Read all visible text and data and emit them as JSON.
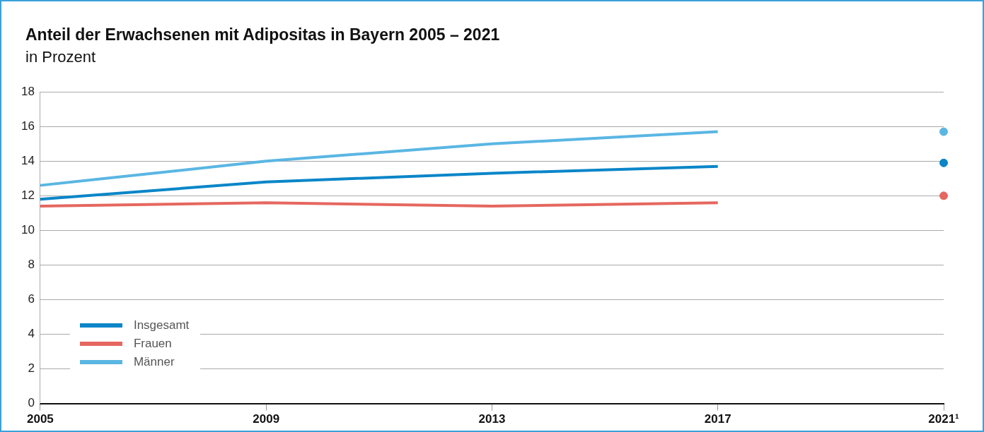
{
  "chart_data": {
    "type": "line",
    "title": "Anteil der Erwachsenen mit Adipositas in Bayern 2005 – 2021",
    "subtitle": "in Prozent",
    "xlim": [
      2005,
      2021
    ],
    "xticks": [
      2005,
      2009,
      2013,
      2017,
      {
        "value": 2021,
        "label": "2021¹"
      }
    ],
    "ylim": [
      0,
      18
    ],
    "yticks": [
      0,
      2,
      4,
      6,
      8,
      10,
      12,
      14,
      16,
      18
    ],
    "grid": "y",
    "legend": "bottom left",
    "marker": "none",
    "line_style": "solid",
    "series": [
      {
        "name": "Insgesamt",
        "color": "#0a86c8",
        "x": [
          2005,
          2009,
          2013,
          2017
        ],
        "values": [
          11.8,
          12.8,
          13.3,
          13.7
        ]
      },
      {
        "name": "Frauen",
        "color": "#e5675f",
        "x": [
          2005,
          2009,
          2013,
          2017
        ],
        "values": [
          11.4,
          11.6,
          11.4,
          11.6
        ]
      },
      {
        "name": "Männer",
        "color": "#5ab6e3",
        "x": [
          2005,
          2009,
          2013,
          2017
        ],
        "values": [
          12.6,
          14.0,
          15.0,
          15.7
        ]
      },
      {
        "type": "scatter",
        "marker": "circle",
        "color": "#0a86c8",
        "x": [
          2021
        ],
        "values": [
          13.9
        ]
      },
      {
        "type": "scatter",
        "marker": "circle",
        "color": "#e5675f",
        "x": [
          2021
        ],
        "values": [
          12.0
        ]
      },
      {
        "type": "scatter",
        "marker": "circle",
        "color": "#5ab6e3",
        "x": [
          2021
        ],
        "values": [
          15.7
        ]
      }
    ]
  }
}
